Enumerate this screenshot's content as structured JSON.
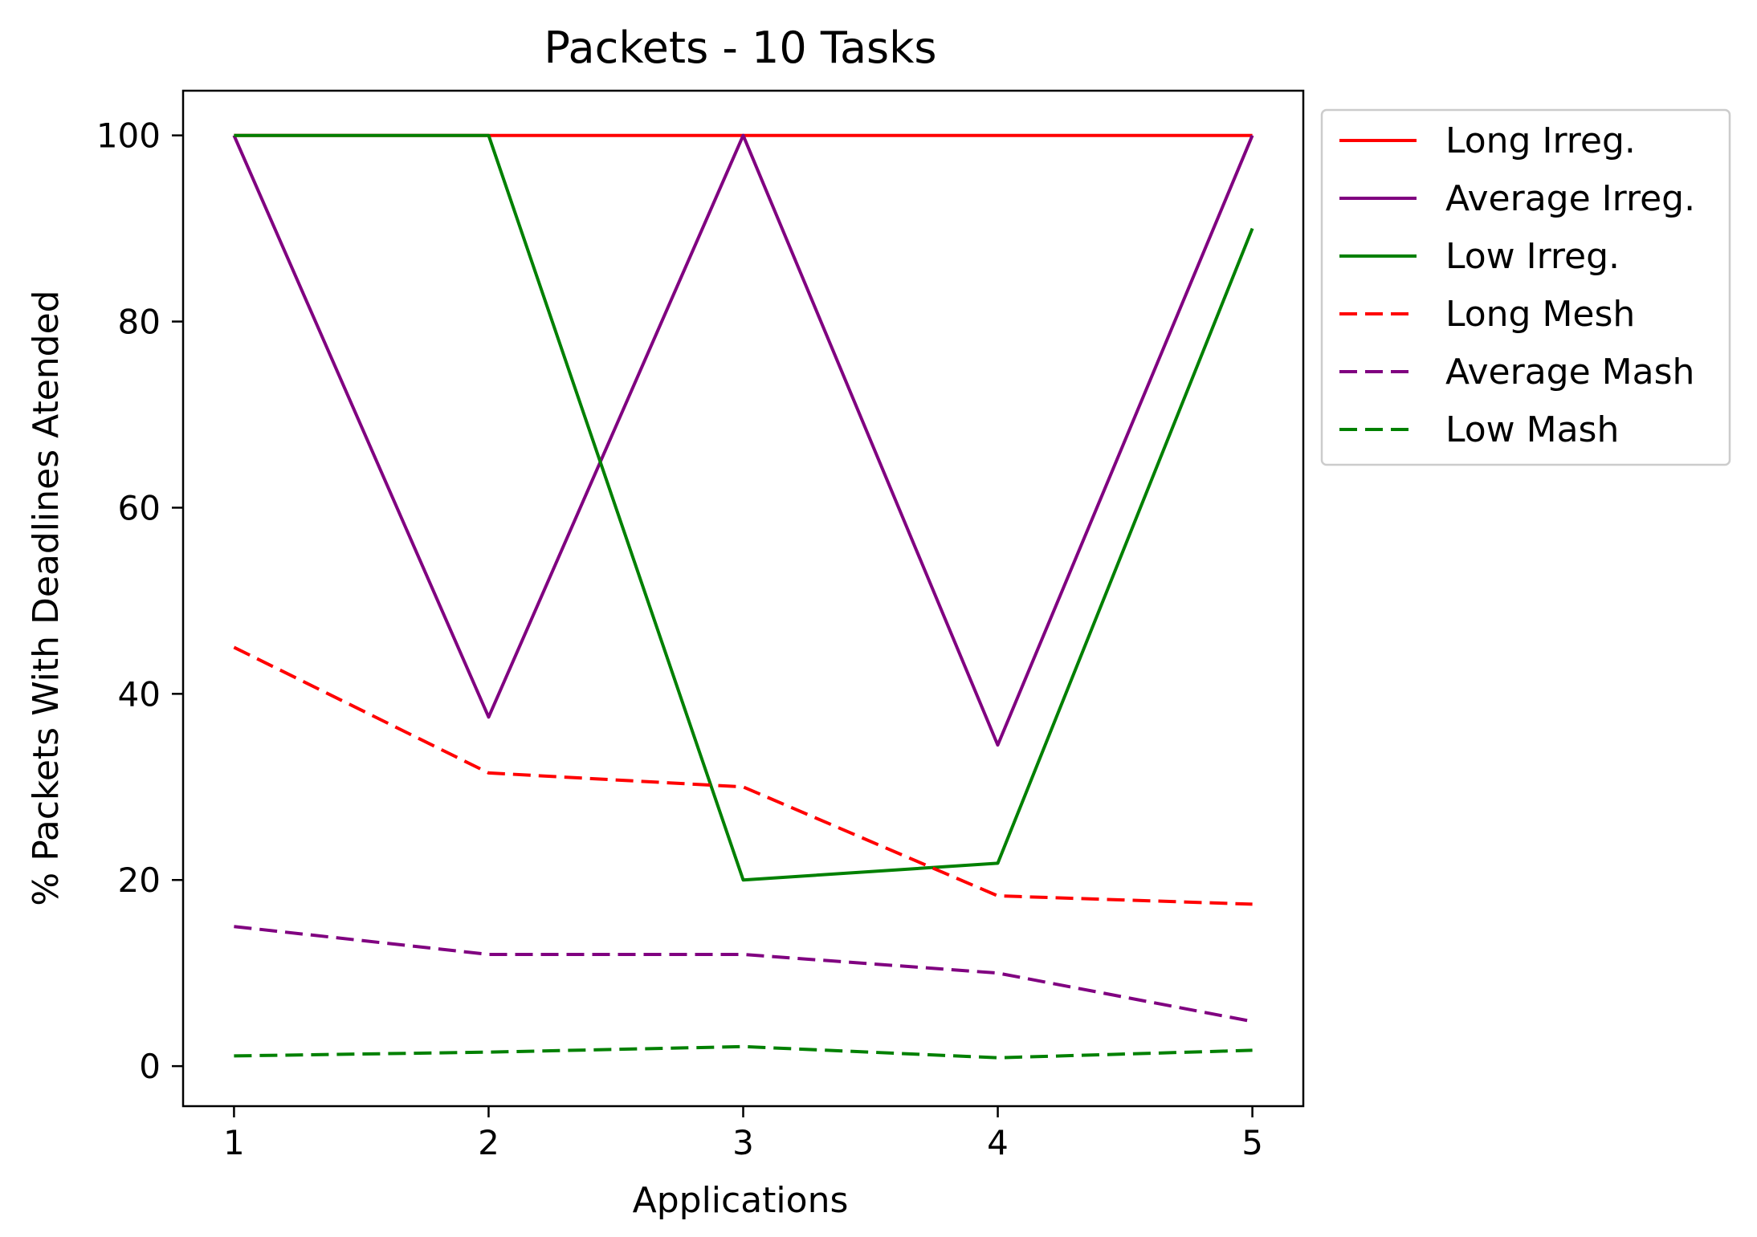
{
  "chart_data": {
    "type": "line",
    "title": "Packets - 10 Tasks",
    "xlabel": "Applications",
    "ylabel": "% Packets With Deadlines Atended",
    "x": [
      1,
      2,
      3,
      4,
      5
    ],
    "xticks": [
      1,
      2,
      3,
      4,
      5
    ],
    "yticks": [
      0,
      20,
      40,
      60,
      80,
      100
    ],
    "xlim": [
      0.8,
      5.2
    ],
    "ylim": [
      -4.3,
      104.8
    ],
    "grid": false,
    "legend_position": "outside-top-right",
    "series": [
      {
        "name": "Long Irreg.",
        "color": "#ff0000",
        "dash": "solid",
        "values": [
          100,
          100,
          100,
          100,
          100
        ]
      },
      {
        "name": "Average Irreg.",
        "color": "#800080",
        "dash": "solid",
        "values": [
          100,
          37.5,
          100,
          34.5,
          100
        ]
      },
      {
        "name": "Low Irreg.",
        "color": "#008000",
        "dash": "solid",
        "values": [
          100,
          100,
          20,
          21.8,
          90
        ]
      },
      {
        "name": "Long Mesh",
        "color": "#ff0000",
        "dash": "dashed",
        "values": [
          45,
          31.5,
          30,
          18.3,
          17.4
        ]
      },
      {
        "name": "Average Mash",
        "color": "#800080",
        "dash": "dashed",
        "values": [
          15,
          12,
          12,
          10,
          4.8
        ]
      },
      {
        "name": "Low Mash",
        "color": "#008000",
        "dash": "dashed",
        "values": [
          1.1,
          1.5,
          2.1,
          0.9,
          1.7
        ]
      }
    ]
  }
}
